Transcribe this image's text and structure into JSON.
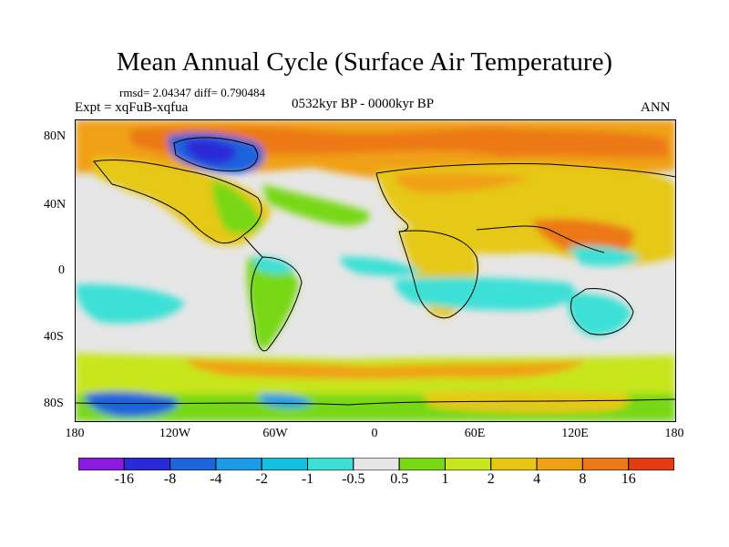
{
  "figure": {
    "title": "Mean Annual Cycle (Surface Air Temperature)",
    "stats": "rmsd= 2.04347 diff= 0.790484",
    "experiment": "Expt = xqFuB-xqfua",
    "period": "0532kyr BP - 0000kyr BP",
    "season": "ANN"
  },
  "axes": {
    "y_ticks": [
      "80N",
      "40N",
      "0",
      "40S",
      "80S"
    ],
    "x_ticks": [
      "180",
      "120W",
      "60W",
      "0",
      "60E",
      "120E",
      "180"
    ]
  },
  "colorbar": {
    "boundary_labels": [
      "-16",
      "-8",
      "-4",
      "-2",
      "-1",
      "-0.5",
      "0.5",
      "1",
      "2",
      "4",
      "8",
      "16"
    ],
    "colors": [
      "#8a1ae0",
      "#2a2ad8",
      "#1e64dc",
      "#1e9be8",
      "#14c0e0",
      "#3ce0d6",
      "#e6e6e6",
      "#78d814",
      "#c8e61e",
      "#e6c814",
      "#f0a014",
      "#ec7818",
      "#e63c14"
    ]
  },
  "colors": {
    "background": "#ffffff",
    "no_change": "#e6e6e6",
    "coastline": "#000000"
  }
}
